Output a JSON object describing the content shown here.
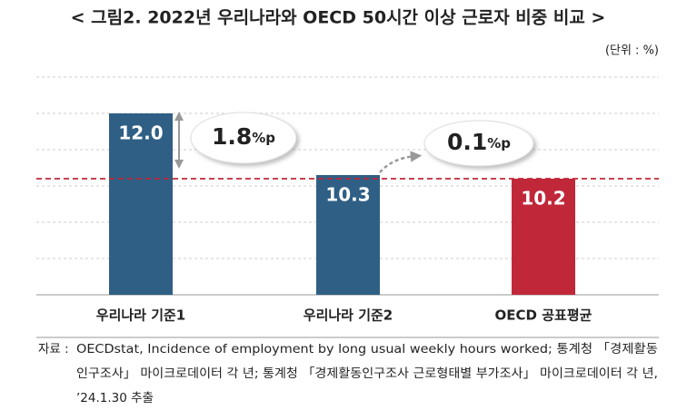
{
  "chart_data": {
    "type": "bar",
    "title": "< 그림2. 2022년 우리나라와 OECD 50시간 이상 근로자 비중 비교 >",
    "unit": "(단위 : %)",
    "categories": [
      "우리나라 기준1",
      "우리나라 기준2",
      "OECD 공표평균"
    ],
    "values": [
      12.0,
      10.3,
      10.2
    ],
    "value_labels": [
      "12.0",
      "10.3",
      "10.2"
    ],
    "colors": [
      "#2f5f84",
      "#2f5f84",
      "#c0283a"
    ],
    "ylim": [
      7,
      13
    ],
    "yticks": [
      7,
      8,
      9,
      10,
      11,
      12,
      13
    ],
    "grid": true,
    "annotations": [
      {
        "value": "1.8",
        "unit": "%p"
      },
      {
        "value": "0.1",
        "unit": "%p"
      }
    ],
    "source_label": "자료 :",
    "source_lines": [
      "OECDstat, Incidence of employment by long usual weekly hours worked; 통계청 「경제활동",
      "인구조사」 마이크로데이터 각 년; 통계청 「경제활동인구조사 근로형태별 부가조사」 마이크로데이터 각 년,",
      "’24.1.30 추출"
    ]
  }
}
